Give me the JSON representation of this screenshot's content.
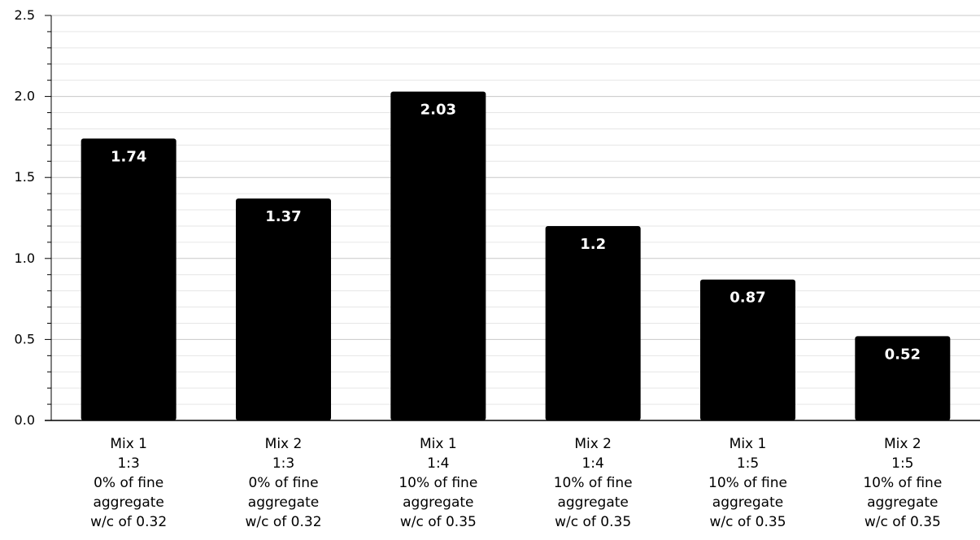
{
  "chart_data": {
    "type": "bar",
    "title": "",
    "xlabel": "",
    "ylabel": "",
    "ylim": [
      0,
      2.5
    ],
    "y_ticks": [
      "0.0",
      "0.5",
      "1.0",
      "1.5",
      "2.0",
      "2.5"
    ],
    "y_tick_values": [
      0,
      0.5,
      1.0,
      1.5,
      2.0,
      2.5
    ],
    "grid": true,
    "legend": "none",
    "bar_color": "#000000",
    "data_label_color": "#ffffff",
    "categories": [
      [
        "Mix 1",
        "1:3",
        "0% of fine",
        "aggregate",
        "w/c of 0.32"
      ],
      [
        "Mix 2",
        "1:3",
        "0% of fine",
        "aggregate",
        "w/c of 0.32"
      ],
      [
        "Mix 1",
        "1:4",
        "10% of fine",
        "aggregate",
        "w/c of 0.35"
      ],
      [
        "Mix 2",
        "1:4",
        "10% of fine",
        "aggregate",
        "w/c of 0.35"
      ],
      [
        "Mix 1",
        "1:5",
        "10% of fine",
        "aggregate",
        "w/c of 0.35"
      ],
      [
        "Mix 2",
        "1:5",
        "10% of fine",
        "aggregate",
        "w/c of 0.35"
      ]
    ],
    "values": [
      1.74,
      1.37,
      2.03,
      1.2,
      0.87,
      0.52
    ],
    "data_labels": [
      "1.74",
      "1.37",
      "2.03",
      "1.2",
      "0.87",
      "0.52"
    ]
  }
}
